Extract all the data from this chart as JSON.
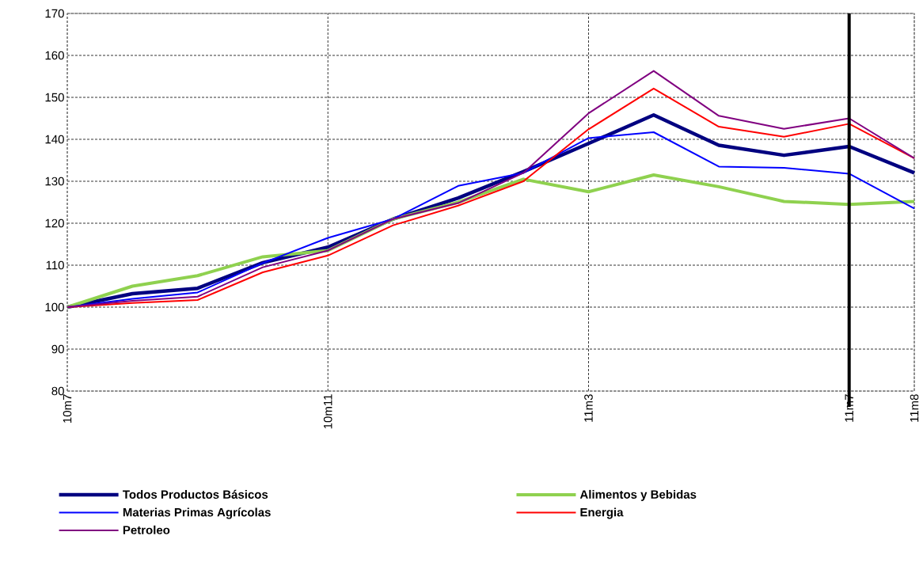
{
  "chart_data": {
    "type": "line",
    "categories": [
      "10m7",
      null,
      null,
      null,
      "10m11",
      null,
      null,
      null,
      "11m3",
      null,
      null,
      null,
      "11m7",
      "11m8"
    ],
    "series": [
      {
        "name": "Todos Productos Básicos",
        "color": "#000080",
        "values": [
          100,
          103.2,
          104.5,
          110.6,
          114.3,
          121,
          126,
          132.3,
          139,
          145.8,
          138.6,
          136.2,
          138.3,
          132
        ]
      },
      {
        "name": "Alimentos y Bebidas",
        "color": "#8fd14f",
        "values": [
          100,
          105,
          107.5,
          112,
          113.5,
          121,
          125,
          130.5,
          127.5,
          131.5,
          128.7,
          125.2,
          124.5,
          125.2
        ]
      },
      {
        "name": "Materias Primas Agrícolas",
        "color": "#0000ff",
        "values": [
          100,
          102,
          103.5,
          110.5,
          116.5,
          121,
          128.9,
          132,
          140.3,
          141.7,
          133.5,
          133.2,
          131.8,
          123.5
        ]
      },
      {
        "name": "Energia",
        "color": "#ff0000",
        "values": [
          100,
          101,
          101.7,
          108.3,
          112.3,
          119.5,
          124.2,
          130,
          142.4,
          152.1,
          143,
          140.6,
          143.7,
          135.5
        ]
      },
      {
        "name": "Petroleo",
        "color": "#800080",
        "values": [
          100,
          101.5,
          102.5,
          109.5,
          113.5,
          121,
          124.8,
          132,
          146.2,
          156.3,
          145.6,
          142.5,
          145,
          135.5
        ]
      }
    ],
    "ylim": [
      80,
      170
    ],
    "yticks": [
      80,
      90,
      100,
      110,
      120,
      130,
      140,
      150,
      160,
      170
    ],
    "grid": true,
    "legend": "bottom",
    "marker": "none",
    "line_style": "solid",
    "ref_lines": [
      {
        "axis": "x",
        "value": "11m7",
        "label": null,
        "color": "#000000"
      }
    ]
  }
}
